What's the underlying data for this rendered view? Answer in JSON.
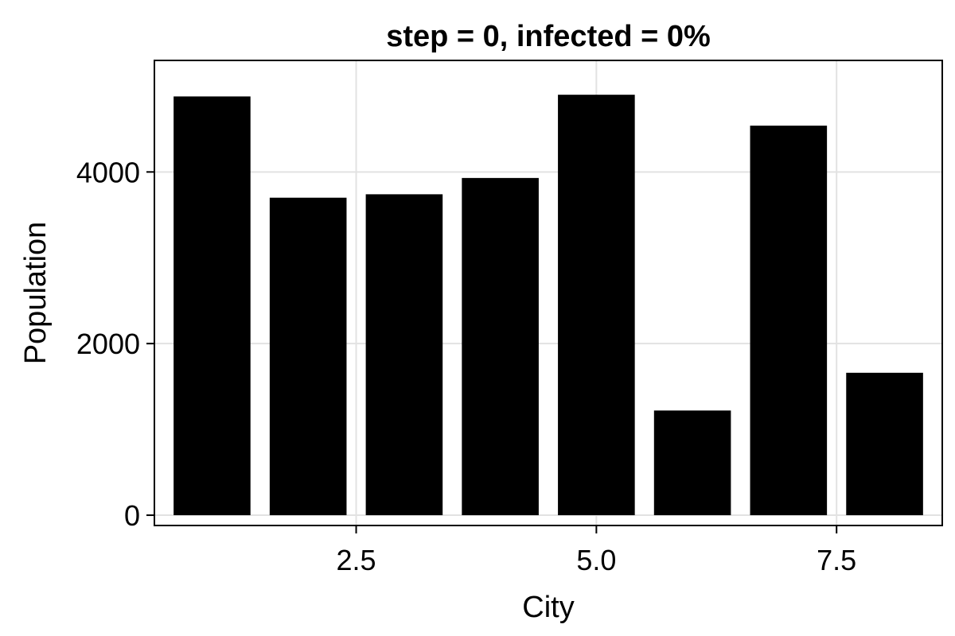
{
  "chart_data": {
    "type": "bar",
    "title": "step = 0, infected = 0%",
    "xlabel": "City",
    "ylabel": "Population",
    "x": [
      1,
      2,
      3,
      4,
      5,
      6,
      7,
      8
    ],
    "values": [
      4880,
      3700,
      3740,
      3930,
      4900,
      1220,
      4540,
      1660
    ],
    "bar_color": "#000000",
    "xlim": [
      0.4,
      8.6
    ],
    "ylim": [
      -120,
      5300
    ],
    "xticks": [
      2.5,
      5.0,
      7.5
    ],
    "xtick_labels": [
      "2.5",
      "5.0",
      "7.5"
    ],
    "yticks": [
      0,
      2000,
      4000
    ],
    "ytick_labels": [
      "0",
      "2000",
      "4000"
    ],
    "grid": true,
    "legend": "none"
  }
}
